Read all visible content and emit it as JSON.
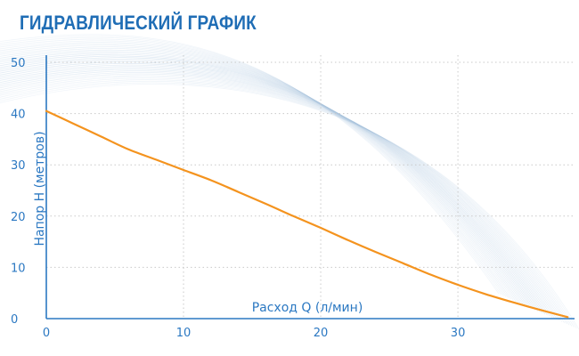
{
  "header": {
    "title": "ГИДРАВЛИЧЕСКИЙ ГРАФИК"
  },
  "chart_data": {
    "type": "line",
    "title": "ГИДРАВЛИЧЕСКИЙ ГРАФИК",
    "xlabel": "Расход Q (л/мин)",
    "ylabel": "Напор H (метров)",
    "xlim": [
      0,
      38.5
    ],
    "ylim": [
      0,
      50
    ],
    "xticks": [
      0,
      10,
      20,
      30
    ],
    "yticks": [
      0,
      10,
      20,
      30,
      40,
      50
    ],
    "grid": true,
    "series": [
      {
        "color": "#f4931e",
        "x": [
          0,
          2,
          4,
          6,
          8,
          10,
          12,
          14,
          16,
          18,
          20,
          22,
          24,
          26,
          28,
          30,
          32,
          34,
          36,
          38
        ],
        "y": [
          40.5,
          38,
          35.5,
          33,
          31,
          29,
          27,
          24.7,
          22.4,
          20,
          17.7,
          15.3,
          13,
          10.8,
          8.6,
          6.6,
          4.8,
          3.2,
          1.7,
          0.3
        ]
      }
    ]
  }
}
